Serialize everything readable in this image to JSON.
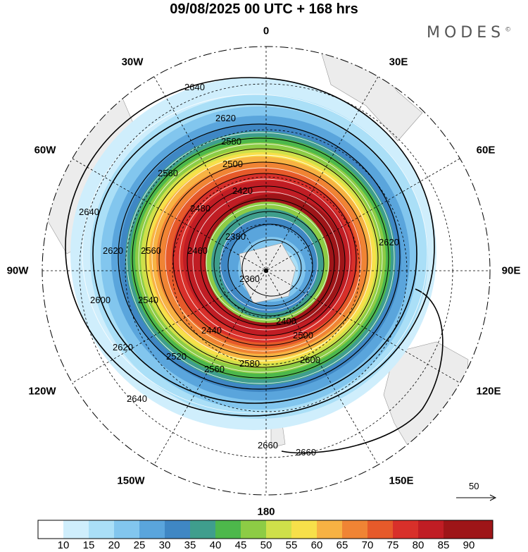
{
  "header": {
    "title": "09/08/2025  00 UTC  + 168 hrs",
    "logo": "MODES"
  },
  "map": {
    "longitude_labels": {
      "top": "0",
      "top_right": "30E",
      "upper_right": "60E",
      "right": "90E",
      "lower_right": "120E",
      "bottom_right": "150E",
      "bottom": "180",
      "bottom_left": "150W",
      "lower_left": "120W",
      "left": "90W",
      "upper_left": "60W",
      "top_left": "30W"
    },
    "contour_labels": [
      "2640",
      "2620",
      "2580",
      "2560",
      "2500",
      "2420",
      "2380",
      "2360",
      "2400",
      "2440",
      "2460",
      "2480",
      "2540",
      "2560",
      "2620",
      "2640",
      "2660",
      "2660",
      "2600",
      "2580",
      "2560",
      "2520",
      "2500",
      "2640",
      "2620",
      "2600",
      "2620"
    ],
    "reference_vector": "50"
  },
  "colorbar": {
    "labels": [
      "10",
      "15",
      "20",
      "25",
      "30",
      "35",
      "40",
      "45",
      "50",
      "55",
      "60",
      "65",
      "70",
      "75",
      "80",
      "85",
      "90"
    ],
    "colors": [
      "#ffffff",
      "#cfeefc",
      "#aadff7",
      "#82c6ee",
      "#5aa5dc",
      "#3f87c4",
      "#3f9e8d",
      "#4db84b",
      "#8dcc45",
      "#cfe04a",
      "#f7e04a",
      "#f7b243",
      "#f08434",
      "#e65a2a",
      "#d8302a",
      "#c01d24",
      "#9e1518"
    ]
  }
}
